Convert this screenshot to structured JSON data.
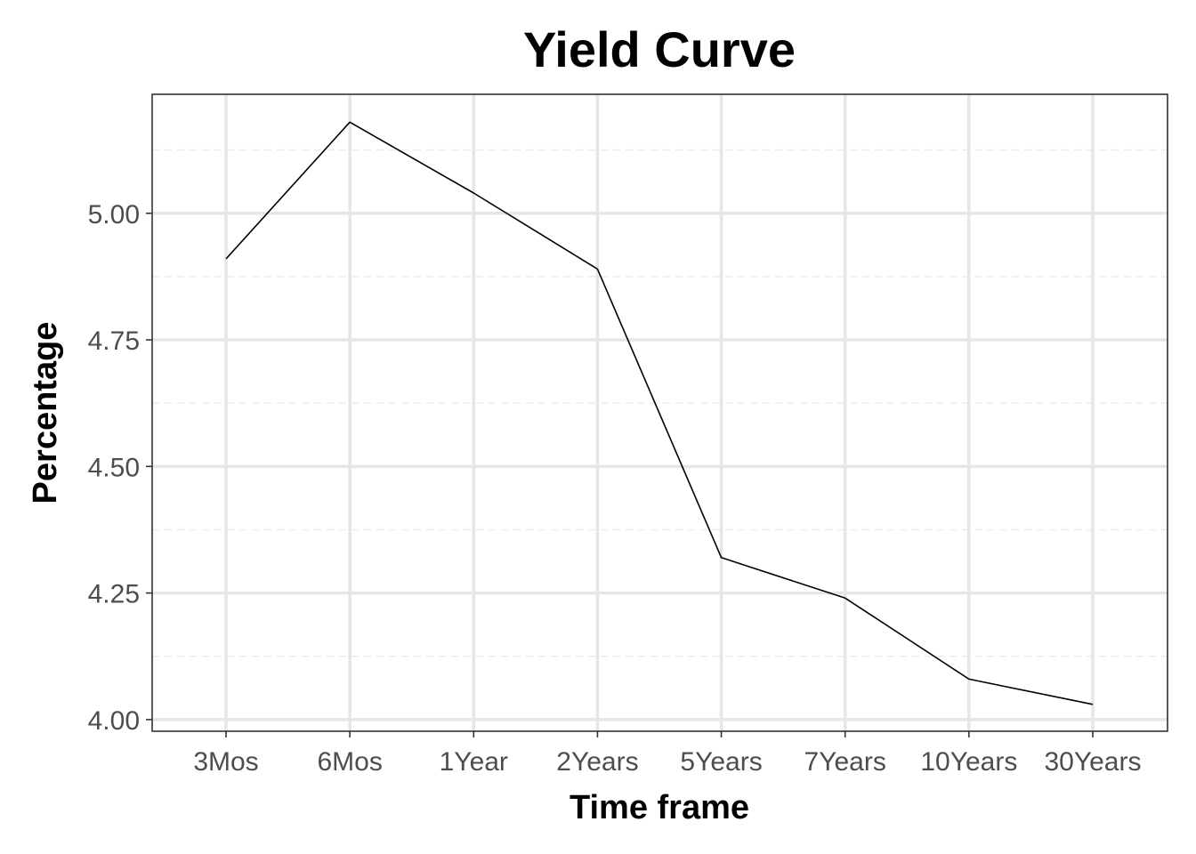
{
  "chart_data": {
    "type": "line",
    "title": "Yield Curve",
    "xlabel": "Time frame",
    "ylabel": "Percentage",
    "categories": [
      "3Mos",
      "6Mos",
      "1Year",
      "2Years",
      "5Years",
      "7Years",
      "10Years",
      "30Years"
    ],
    "values": [
      4.91,
      5.18,
      5.04,
      4.89,
      4.32,
      4.24,
      4.08,
      4.03
    ],
    "ylim": [
      3.977,
      5.235
    ],
    "yticks": [
      4.0,
      4.25,
      4.5,
      4.75,
      5.0
    ],
    "ytick_labels": [
      "4.00",
      "4.25",
      "4.50",
      "4.75",
      "5.00"
    ],
    "grid": true,
    "legend": "none",
    "line_color": "#000000"
  }
}
